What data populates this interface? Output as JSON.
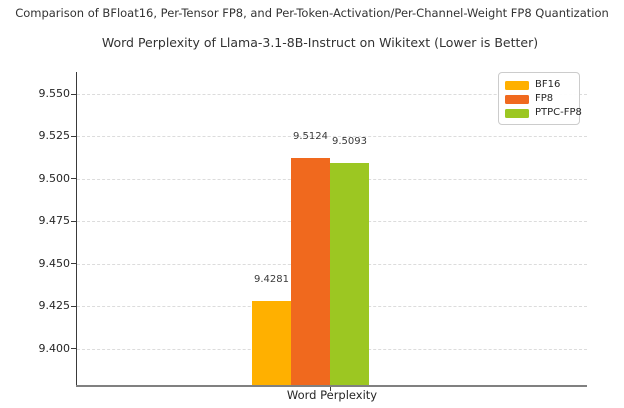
{
  "chart_data": {
    "type": "bar",
    "suptitle": "Comparison of BFloat16, Per-Tensor FP8, and Per-Token-Activation/Per-Channel-Weight FP8 Quantization",
    "title": "Word Perplexity of Llama-3.1-8B-Instruct on Wikitext (Lower is Better)",
    "xlabel": "Word Perplexity",
    "categories": [
      "Word Perplexity"
    ],
    "series": [
      {
        "name": "BF16",
        "values": [
          9.4281
        ],
        "value_label": "9.4281",
        "color": "#FFB000"
      },
      {
        "name": "FP8",
        "values": [
          9.5124
        ],
        "value_label": "9.5124",
        "color": "#F0691E"
      },
      {
        "name": "PTPC-FP8",
        "values": [
          9.5093
        ],
        "value_label": "9.5093",
        "color": "#9CC722"
      }
    ],
    "ylim": [
      9.378,
      9.563
    ],
    "yticks": [
      9.4,
      9.425,
      9.45,
      9.475,
      9.5,
      9.525,
      9.55
    ],
    "ytick_labels": [
      "9.400",
      "9.425",
      "9.450",
      "9.475",
      "9.500",
      "9.525",
      "9.550"
    ],
    "legend": {
      "position": "upper right",
      "entries": [
        "BF16",
        "FP8",
        "PTPC-FP8"
      ]
    },
    "grid": "horizontal-dashed",
    "colors": {
      "background": "#FFFFFF",
      "gridline": "#DCDCDC",
      "axis_left": "#3A3A3A",
      "axis_bottom": "#808080",
      "text": "#262626"
    }
  }
}
